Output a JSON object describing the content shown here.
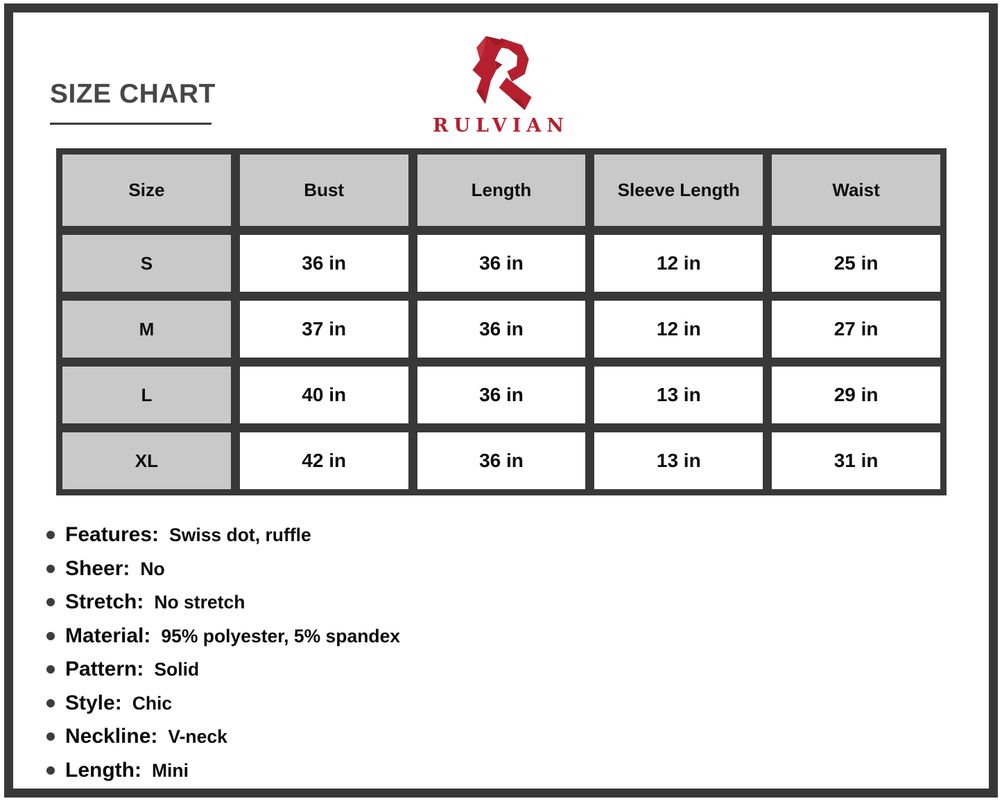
{
  "page": {
    "title": "SIZE CHART",
    "brand": "RULVIAN"
  },
  "chart_data": {
    "type": "table",
    "title": "SIZE CHART",
    "columns": [
      "Size",
      "Bust",
      "Length",
      "Sleeve Length",
      "Waist"
    ],
    "rows": [
      [
        "S",
        "36 in",
        "36 in",
        "12 in",
        "25 in"
      ],
      [
        "M",
        "37 in",
        "36 in",
        "12 in",
        "27 in"
      ],
      [
        "L",
        "40 in",
        "36 in",
        "13 in",
        "29 in"
      ],
      [
        "XL",
        "42 in",
        "36 in",
        "13 in",
        "31 in"
      ]
    ]
  },
  "details": [
    {
      "label": "Features:",
      "value": "Swiss dot, ruffle"
    },
    {
      "label": "Sheer:",
      "value": "No"
    },
    {
      "label": "Stretch:",
      "value": "No stretch"
    },
    {
      "label": "Material:",
      "value": "95% polyester, 5% spandex"
    },
    {
      "label": "Pattern:",
      "value": "Solid"
    },
    {
      "label": "Style:",
      "value": "Chic"
    },
    {
      "label": "Neckline:",
      "value": "V-neck"
    },
    {
      "label": "Length:",
      "value": "Mini"
    }
  ],
  "colors": {
    "brand_red": "#b5202f",
    "frame_charcoal": "#383838",
    "header_gray": "#c9c9c9",
    "cell_white": "#ffffff"
  }
}
